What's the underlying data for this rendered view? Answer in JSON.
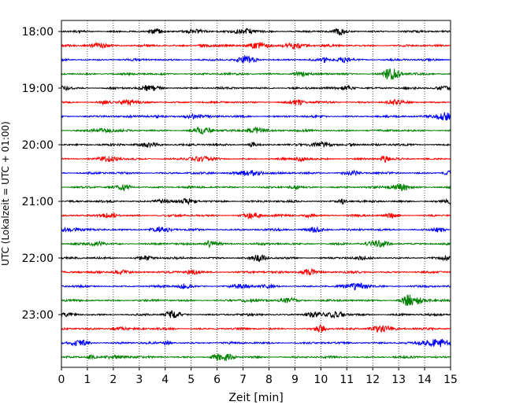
{
  "chart_data": {
    "type": "line",
    "title": "",
    "xlabel": "Zeit  [min]",
    "ylabel": "UTC (Lokalzeit = UTC + 01:00)",
    "xlim": [
      0,
      15
    ],
    "x_ticks": [
      0,
      1,
      2,
      3,
      4,
      5,
      6,
      7,
      8,
      9,
      10,
      11,
      12,
      13,
      14,
      15
    ],
    "y_ticks": [
      "18:00",
      "19:00",
      "20:00",
      "21:00",
      "22:00",
      "23:00"
    ],
    "start_time": "18:00",
    "trace_interval_min": 15,
    "trace_count": 24,
    "trace_colors": [
      "#000000",
      "#ff0000",
      "#0000ff",
      "#008000"
    ],
    "vertical_grid": "dotted",
    "series": [
      {
        "time": "18:00",
        "color": "#000000"
      },
      {
        "time": "18:15",
        "color": "#ff0000"
      },
      {
        "time": "18:30",
        "color": "#0000ff"
      },
      {
        "time": "18:45",
        "color": "#008000"
      },
      {
        "time": "19:00",
        "color": "#000000"
      },
      {
        "time": "19:15",
        "color": "#ff0000"
      },
      {
        "time": "19:30",
        "color": "#0000ff"
      },
      {
        "time": "19:45",
        "color": "#008000"
      },
      {
        "time": "20:00",
        "color": "#000000"
      },
      {
        "time": "20:15",
        "color": "#ff0000"
      },
      {
        "time": "20:30",
        "color": "#0000ff"
      },
      {
        "time": "20:45",
        "color": "#008000"
      },
      {
        "time": "21:00",
        "color": "#000000"
      },
      {
        "time": "21:15",
        "color": "#ff0000"
      },
      {
        "time": "21:30",
        "color": "#0000ff"
      },
      {
        "time": "21:45",
        "color": "#008000"
      },
      {
        "time": "22:00",
        "color": "#000000"
      },
      {
        "time": "22:15",
        "color": "#ff0000"
      },
      {
        "time": "22:30",
        "color": "#0000ff"
      },
      {
        "time": "22:45",
        "color": "#008000"
      },
      {
        "time": "23:00",
        "color": "#000000"
      },
      {
        "time": "23:15",
        "color": "#ff0000"
      },
      {
        "time": "23:30",
        "color": "#0000ff"
      },
      {
        "time": "23:45",
        "color": "#008000"
      }
    ]
  }
}
